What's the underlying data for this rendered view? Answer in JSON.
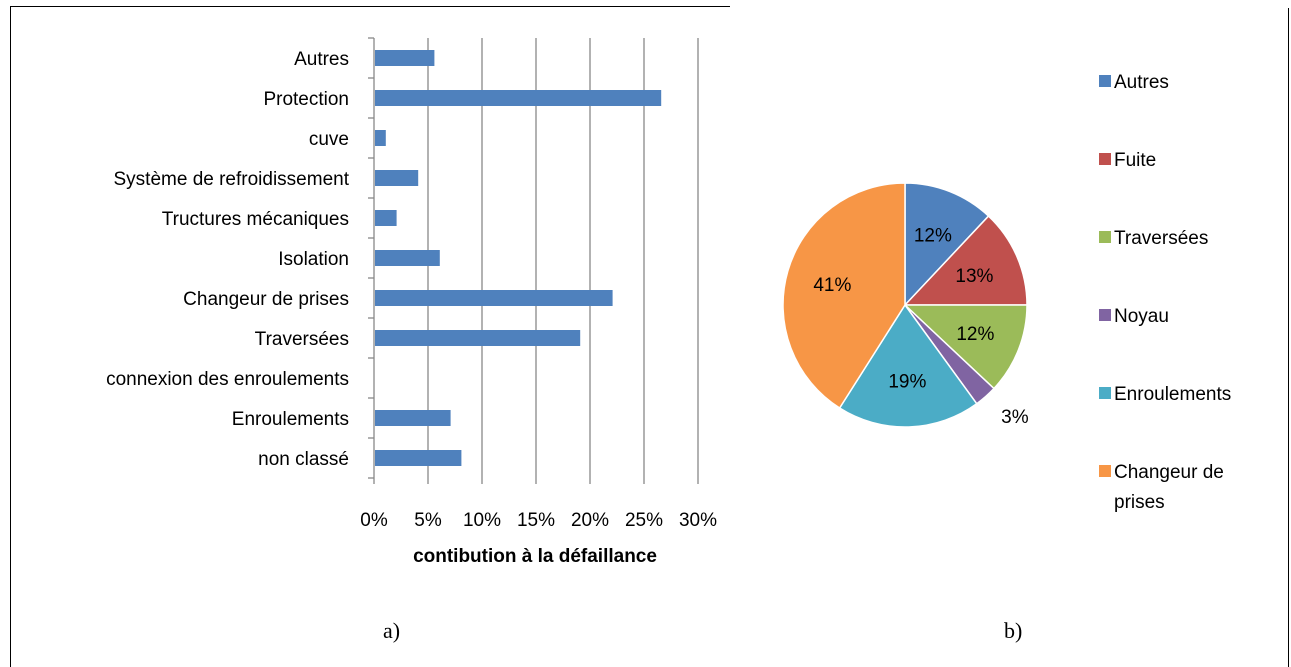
{
  "chart_data": [
    {
      "type": "bar",
      "orientation": "horizontal",
      "categories": [
        "Autres",
        "Protection",
        "cuve",
        "Système de refroidissement",
        "Tructures mécaniques",
        "Isolation",
        "Changeur de prises",
        "Traversées",
        "connexion des enroulements",
        "Enroulements",
        "non classé"
      ],
      "values": [
        5.5,
        26.5,
        1,
        4,
        2,
        6,
        22,
        19,
        0,
        7,
        8
      ],
      "value_unit": "%",
      "xlabel": "contibution à la défaillance",
      "xlim": [
        0,
        30
      ],
      "xticks": [
        "0%",
        "5%",
        "10%",
        "15%",
        "20%",
        "25%",
        "30%"
      ],
      "grid": "vertical",
      "color": "#4f81bd",
      "caption": "a)"
    },
    {
      "type": "pie",
      "labels": [
        "Autres",
        "Fuite",
        "Traversées",
        "Noyau",
        "Enroulements",
        "Changeur de prises"
      ],
      "legend_lines": [
        [
          "Autres"
        ],
        [
          "Fuite"
        ],
        [
          "Traversées"
        ],
        [
          "Noyau"
        ],
        [
          "Enroulements"
        ],
        [
          "Changeur de",
          "prises"
        ]
      ],
      "values": [
        12,
        13,
        12,
        3,
        19,
        41
      ],
      "data_labels": [
        "12%",
        "13%",
        "12%",
        "3%",
        "19%",
        "41%"
      ],
      "colors": [
        "#4f81bd",
        "#c0504d",
        "#9bbb59",
        "#8064a2",
        "#4bacc6",
        "#f79646"
      ],
      "legend": "right",
      "caption": "b)"
    }
  ]
}
